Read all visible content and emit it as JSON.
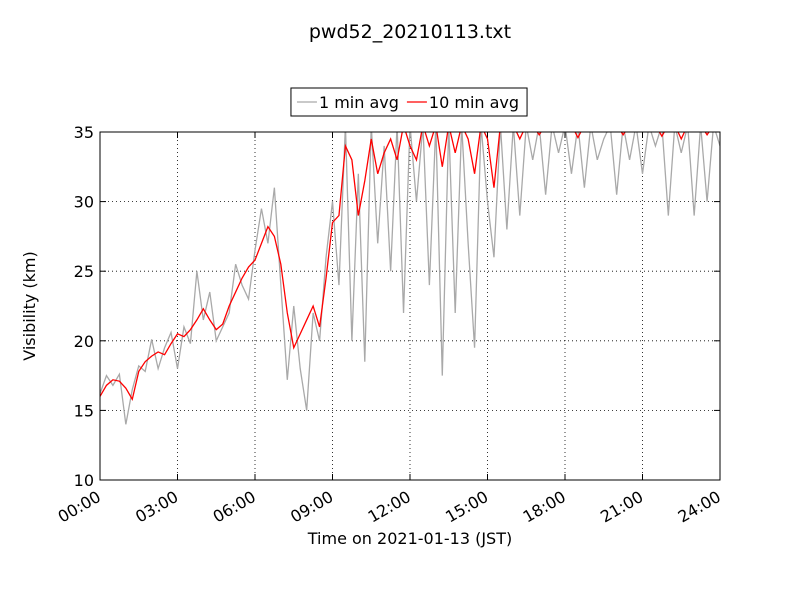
{
  "chart_data": {
    "type": "line",
    "title": "pwd52_20210113.txt",
    "xlabel": "Time on 2021-01-13 (JST)",
    "ylabel": "Visibility (km)",
    "xlim": [
      0,
      24
    ],
    "ylim": [
      10,
      35
    ],
    "xticks": [
      {
        "value": 0,
        "label": "00:00"
      },
      {
        "value": 3,
        "label": "03:00"
      },
      {
        "value": 6,
        "label": "06:00"
      },
      {
        "value": 9,
        "label": "09:00"
      },
      {
        "value": 12,
        "label": "12:00"
      },
      {
        "value": 15,
        "label": "15:00"
      },
      {
        "value": 18,
        "label": "18:00"
      },
      {
        "value": 21,
        "label": "21:00"
      },
      {
        "value": 24,
        "label": "24:00"
      }
    ],
    "yticks": [
      10,
      15,
      20,
      25,
      30,
      35
    ],
    "grid": true,
    "legend": "upper center",
    "x": [
      0,
      0.25,
      0.5,
      0.75,
      1,
      1.25,
      1.5,
      1.75,
      2,
      2.25,
      2.5,
      2.75,
      3,
      3.25,
      3.5,
      3.75,
      4,
      4.25,
      4.5,
      4.75,
      5,
      5.25,
      5.5,
      5.75,
      6,
      6.25,
      6.5,
      6.75,
      7,
      7.25,
      7.5,
      7.75,
      8,
      8.25,
      8.5,
      8.75,
      9,
      9.25,
      9.5,
      9.75,
      10,
      10.25,
      10.5,
      10.75,
      11,
      11.25,
      11.5,
      11.75,
      12,
      12.25,
      12.5,
      12.75,
      13,
      13.25,
      13.5,
      13.75,
      14,
      14.25,
      14.5,
      14.75,
      15,
      15.25,
      15.5,
      15.75,
      16,
      16.25,
      16.5,
      16.75,
      17,
      17.25,
      17.5,
      17.75,
      18,
      18.25,
      18.5,
      18.75,
      19,
      19.25,
      19.5,
      19.75,
      20,
      20.25,
      20.5,
      20.75,
      21,
      21.25,
      21.5,
      21.75,
      22,
      22.25,
      22.5,
      22.75,
      23,
      23.25,
      23.5,
      23.75,
      24
    ],
    "series": [
      {
        "name": "1 min avg",
        "color": "#a9a9a9",
        "values": [
          16.2,
          17.5,
          16.8,
          17.6,
          14.0,
          16.5,
          18.2,
          17.8,
          20.1,
          18.0,
          19.5,
          20.6,
          18.0,
          21.0,
          19.8,
          25.0,
          21.5,
          23.5,
          20.0,
          21.0,
          22.0,
          25.5,
          24.0,
          23.0,
          26.5,
          29.5,
          27.0,
          31.0,
          24.0,
          17.2,
          22.5,
          18.0,
          15.0,
          22.0,
          20.0,
          26.0,
          30.0,
          24.0,
          35.5,
          20.0,
          32.0,
          18.5,
          35.5,
          27.0,
          34.0,
          25.0,
          35.5,
          22.0,
          35.5,
          30.0,
          35.5,
          24.0,
          35.5,
          17.5,
          35.5,
          22.0,
          35.5,
          27.0,
          19.5,
          35.5,
          30.0,
          26.0,
          35.5,
          28.0,
          35.5,
          29.0,
          35.5,
          33.0,
          35.5,
          30.5,
          35.5,
          33.5,
          35.5,
          32.0,
          35.5,
          31.0,
          35.5,
          33.0,
          34.5,
          35.5,
          30.5,
          35.5,
          33.0,
          35.5,
          32.0,
          35.5,
          34.0,
          35.5,
          29.0,
          35.5,
          33.5,
          35.5,
          29.0,
          35.5,
          30.0,
          35.5,
          34.0
        ]
      },
      {
        "name": "10 min avg",
        "color": "#ff0000",
        "values": [
          16.0,
          16.8,
          17.2,
          17.1,
          16.6,
          15.8,
          17.8,
          18.5,
          18.9,
          19.2,
          19.0,
          19.8,
          20.5,
          20.3,
          20.8,
          21.5,
          22.3,
          21.5,
          20.8,
          21.2,
          22.5,
          23.5,
          24.5,
          25.3,
          25.8,
          27.0,
          28.2,
          27.5,
          25.5,
          22.0,
          19.5,
          20.5,
          21.5,
          22.5,
          21.0,
          24.5,
          28.5,
          29.0,
          34.0,
          33.0,
          29.0,
          31.5,
          34.5,
          32.0,
          33.5,
          34.5,
          33.0,
          35.5,
          34.0,
          33.0,
          35.5,
          34.0,
          35.5,
          32.5,
          35.5,
          33.5,
          35.5,
          34.5,
          32.0,
          35.5,
          34.5,
          31.0,
          35.5,
          35.5,
          35.5,
          34.5,
          35.5,
          35.5,
          34.8,
          35.5,
          35.5,
          35.5,
          35.5,
          35.5,
          34.6,
          35.5,
          35.5,
          35.5,
          35.5,
          35.5,
          35.5,
          34.8,
          35.5,
          35.5,
          35.5,
          35.5,
          35.5,
          34.7,
          35.5,
          35.5,
          34.5,
          35.5,
          35.5,
          35.5,
          34.8,
          35.5,
          35.5
        ]
      }
    ]
  }
}
